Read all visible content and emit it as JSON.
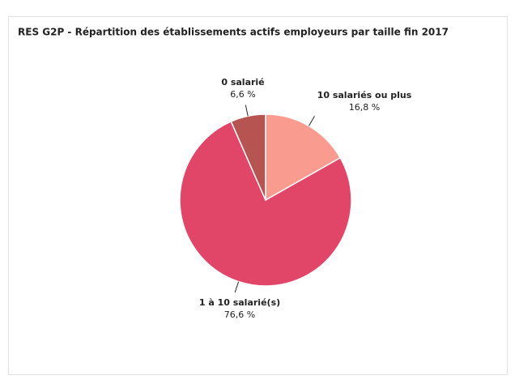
{
  "chart_data": {
    "type": "pie",
    "title": "RES G2P - Répartition des établissements actifs employeurs par taille fin 2017",
    "categories": [
      "10 salariés ou plus",
      "1 à 10 salarié(s)",
      "0 salarié"
    ],
    "values": [
      16.8,
      76.6,
      6.6
    ],
    "value_labels": [
      "16,8 %",
      "76,6 %",
      "6,6 %"
    ],
    "colors": [
      "#f99b8e",
      "#e14567",
      "#b55450"
    ]
  }
}
